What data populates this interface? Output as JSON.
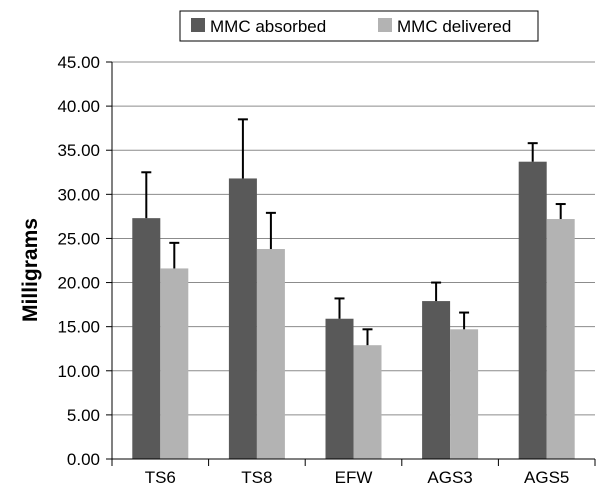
{
  "chart_data": {
    "type": "bar",
    "ylabel": "Milligrams",
    "xlabel": "",
    "ylim": [
      0,
      45
    ],
    "y_ticks": [
      "0.00",
      "5.00",
      "10.00",
      "15.00",
      "20.00",
      "25.00",
      "30.00",
      "35.00",
      "40.00",
      "45.00"
    ],
    "grid": true,
    "legend_position": "top-center",
    "categories": [
      "TS6",
      "TS8",
      "EFW",
      "AGS3",
      "AGS5"
    ],
    "series": [
      {
        "name": "MMC absorbed",
        "color": "#595959",
        "values": [
          27.3,
          31.8,
          15.9,
          17.9,
          33.7
        ],
        "error": [
          5.2,
          6.7,
          2.3,
          2.1,
          2.1
        ]
      },
      {
        "name": "MMC delivered",
        "color": "#b3b3b3",
        "values": [
          21.6,
          23.8,
          12.9,
          14.7,
          27.2
        ],
        "error": [
          2.9,
          4.1,
          1.8,
          1.9,
          1.7
        ]
      }
    ]
  }
}
